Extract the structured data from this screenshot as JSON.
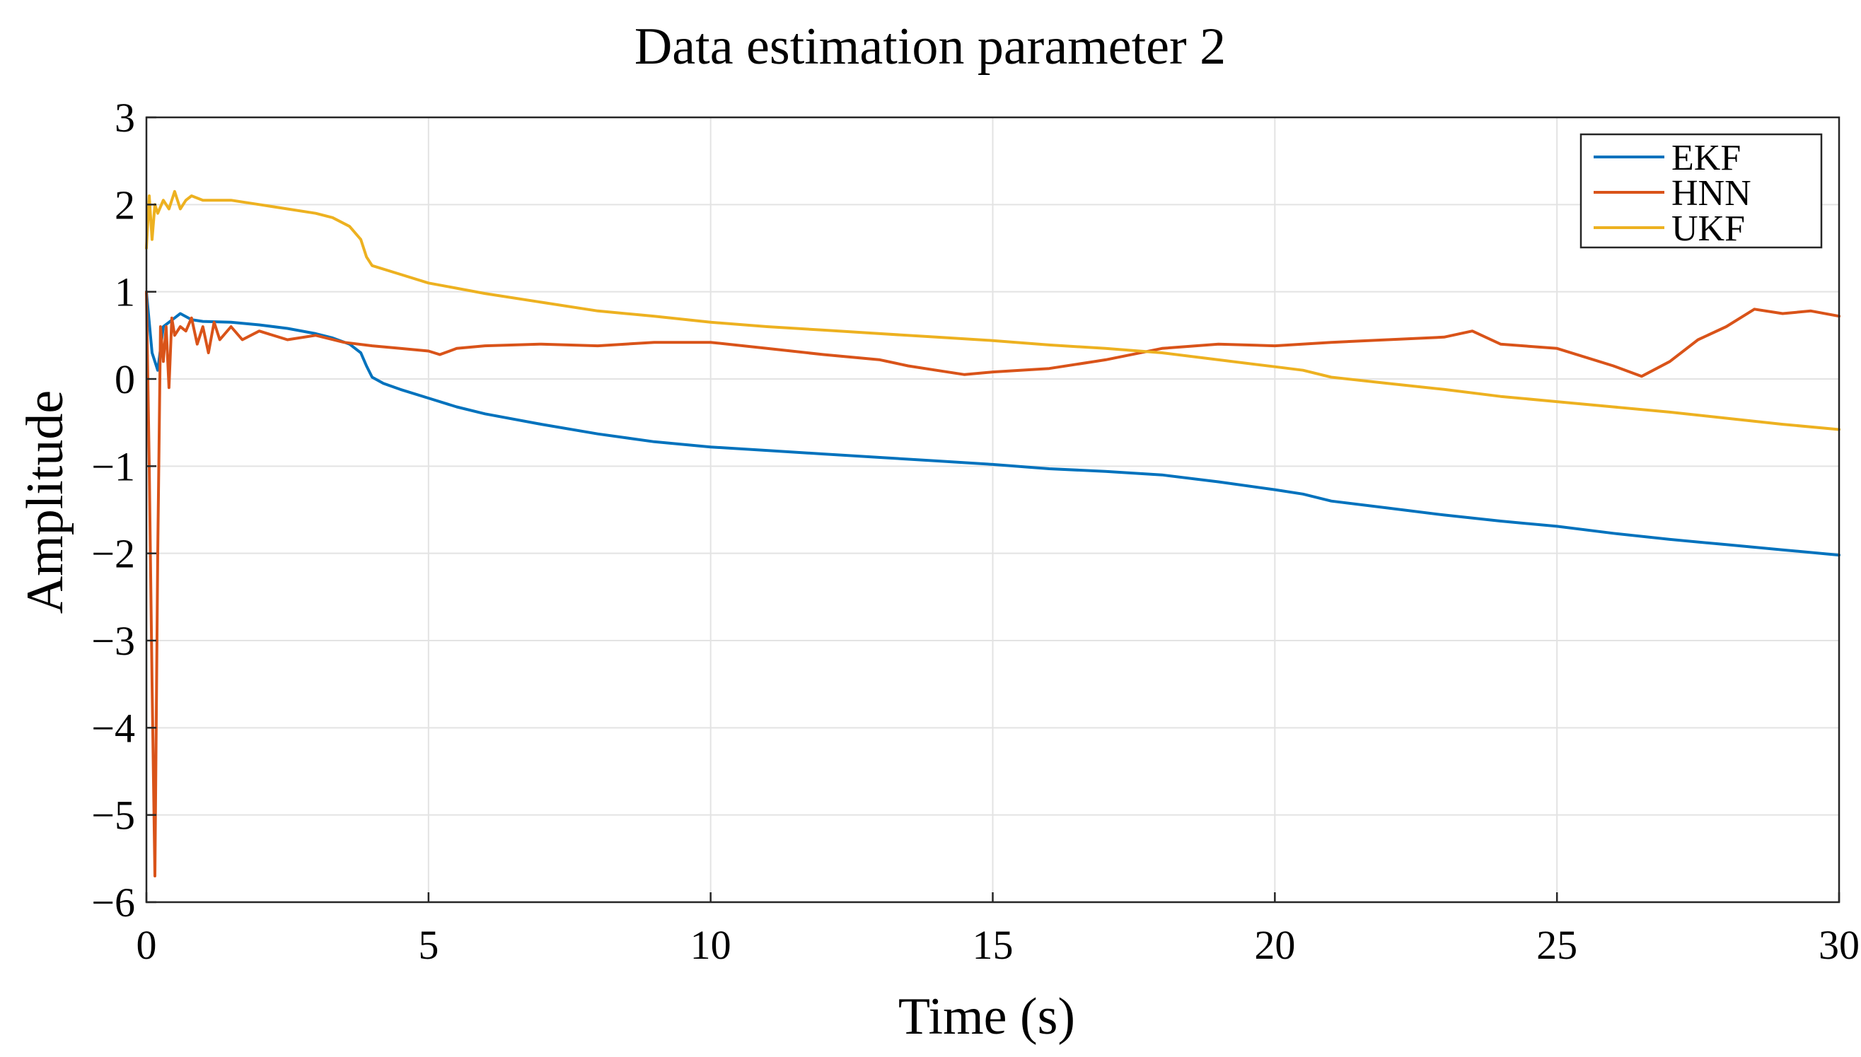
{
  "chart_data": {
    "type": "line",
    "title": "Data estimation parameter 2",
    "xlabel": "Time (s)",
    "ylabel": "Amplitude",
    "xlim": [
      0,
      30
    ],
    "ylim": [
      -6,
      3
    ],
    "grid": true,
    "legend_position": "top-right",
    "x_ticks": [
      {
        "value": 0,
        "label": "0"
      },
      {
        "value": 5,
        "label": "5"
      },
      {
        "value": 10,
        "label": "10"
      },
      {
        "value": 15,
        "label": "15"
      },
      {
        "value": 20,
        "label": "20"
      },
      {
        "value": 25,
        "label": "25"
      },
      {
        "value": 30,
        "label": "30"
      }
    ],
    "y_ticks": [
      {
        "value": 3,
        "label": "3"
      },
      {
        "value": 2,
        "label": "2"
      },
      {
        "value": 1,
        "label": "1"
      },
      {
        "value": 0,
        "label": "0"
      },
      {
        "value": -1,
        "label": "−1"
      },
      {
        "value": -2,
        "label": "−2"
      },
      {
        "value": -3,
        "label": "−3"
      },
      {
        "value": -4,
        "label": "−4"
      },
      {
        "value": -5,
        "label": "−5"
      },
      {
        "value": -6,
        "label": "−6"
      }
    ],
    "series": [
      {
        "name": "EKF",
        "color": "#0072BD",
        "x": [
          0,
          0.1,
          0.2,
          0.3,
          0.4,
          0.5,
          0.6,
          0.8,
          1,
          1.5,
          2,
          2.5,
          3,
          3.3,
          3.6,
          3.8,
          3.9,
          4,
          4.2,
          4.5,
          5,
          5.5,
          6,
          7,
          8,
          9,
          10,
          11,
          12,
          13,
          14,
          15,
          16,
          17,
          18,
          19,
          20,
          20.5,
          21,
          22,
          23,
          24,
          25,
          26,
          27,
          28,
          29,
          30
        ],
        "y": [
          1.0,
          0.3,
          0.1,
          0.6,
          0.65,
          0.7,
          0.75,
          0.68,
          0.66,
          0.65,
          0.62,
          0.58,
          0.52,
          0.47,
          0.4,
          0.3,
          0.15,
          0.02,
          -0.05,
          -0.12,
          -0.22,
          -0.32,
          -0.4,
          -0.52,
          -0.63,
          -0.72,
          -0.78,
          -0.82,
          -0.86,
          -0.9,
          -0.94,
          -0.98,
          -1.03,
          -1.06,
          -1.1,
          -1.18,
          -1.27,
          -1.32,
          -1.4,
          -1.48,
          -1.56,
          -1.63,
          -1.69,
          -1.77,
          -1.84,
          -1.9,
          -1.96,
          -2.02
        ]
      },
      {
        "name": "HNN",
        "color": "#D95319",
        "x": [
          0,
          0.05,
          0.1,
          0.15,
          0.2,
          0.25,
          0.3,
          0.35,
          0.4,
          0.45,
          0.5,
          0.6,
          0.7,
          0.8,
          0.9,
          1,
          1.1,
          1.2,
          1.3,
          1.5,
          1.7,
          2,
          2.5,
          3,
          3.5,
          4,
          4.5,
          5,
          5.2,
          5.5,
          6,
          7,
          8,
          9,
          10,
          11,
          12,
          13,
          13.5,
          14,
          14.5,
          15,
          16,
          17,
          18,
          19,
          20,
          21,
          22,
          23,
          23.5,
          24,
          25,
          26,
          26.5,
          27,
          27.5,
          28,
          28.5,
          29,
          29.5,
          30
        ],
        "y": [
          1.0,
          -1.0,
          -3.5,
          -5.7,
          -2.0,
          0.6,
          0.2,
          0.6,
          -0.1,
          0.7,
          0.5,
          0.6,
          0.55,
          0.7,
          0.4,
          0.6,
          0.3,
          0.65,
          0.45,
          0.6,
          0.45,
          0.55,
          0.45,
          0.5,
          0.42,
          0.38,
          0.35,
          0.32,
          0.28,
          0.35,
          0.38,
          0.4,
          0.38,
          0.42,
          0.42,
          0.35,
          0.28,
          0.22,
          0.15,
          0.1,
          0.05,
          0.08,
          0.12,
          0.22,
          0.35,
          0.4,
          0.38,
          0.42,
          0.45,
          0.48,
          0.55,
          0.4,
          0.35,
          0.15,
          0.03,
          0.2,
          0.45,
          0.6,
          0.8,
          0.75,
          0.78,
          0.72
        ]
      },
      {
        "name": "UKF",
        "color": "#EDB120",
        "x": [
          0,
          0.05,
          0.1,
          0.15,
          0.2,
          0.3,
          0.4,
          0.5,
          0.6,
          0.7,
          0.8,
          1,
          1.5,
          2,
          2.5,
          3,
          3.3,
          3.6,
          3.8,
          3.9,
          4,
          4.5,
          5,
          6,
          7,
          8,
          9,
          10,
          11,
          12,
          13,
          14,
          15,
          16,
          17,
          18,
          19,
          20,
          20.5,
          21,
          22,
          23,
          24,
          25,
          26,
          27,
          28,
          29,
          30
        ],
        "y": [
          1.5,
          2.1,
          1.6,
          2.0,
          1.9,
          2.05,
          1.95,
          2.15,
          1.95,
          2.05,
          2.1,
          2.05,
          2.05,
          2.0,
          1.95,
          1.9,
          1.85,
          1.75,
          1.6,
          1.4,
          1.3,
          1.2,
          1.1,
          0.98,
          0.88,
          0.78,
          0.72,
          0.65,
          0.6,
          0.56,
          0.52,
          0.48,
          0.44,
          0.39,
          0.35,
          0.3,
          0.22,
          0.14,
          0.1,
          0.02,
          -0.05,
          -0.12,
          -0.2,
          -0.26,
          -0.32,
          -0.38,
          -0.45,
          -0.52,
          -0.58
        ]
      }
    ]
  }
}
